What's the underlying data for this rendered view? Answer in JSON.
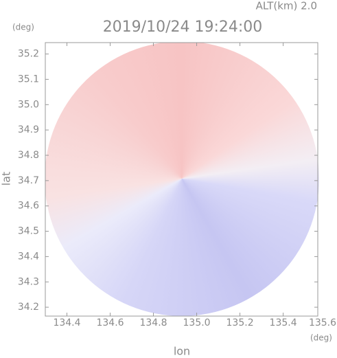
{
  "chart_data": {
    "type": "map",
    "title": "2019/10/24 19:24:00",
    "annotation": "ALT(km)  2.0",
    "x_label": "lon",
    "y_label": "lat",
    "x_unit": "(deg)",
    "y_unit": "(deg)",
    "xlim": [
      134.3,
      135.56
    ],
    "ylim": [
      34.165,
      35.245
    ],
    "xticks": [
      134.4,
      134.6,
      134.8,
      {
        "value": 135,
        "label": "135.0"
      },
      135.2,
      135.4,
      135.6
    ],
    "yticks": [
      34.2,
      34.3,
      34.4,
      34.5,
      34.6,
      34.7,
      34.8,
      34.9,
      {
        "value": 35,
        "label": "35.0"
      },
      35.1,
      35.2
    ]
  }
}
